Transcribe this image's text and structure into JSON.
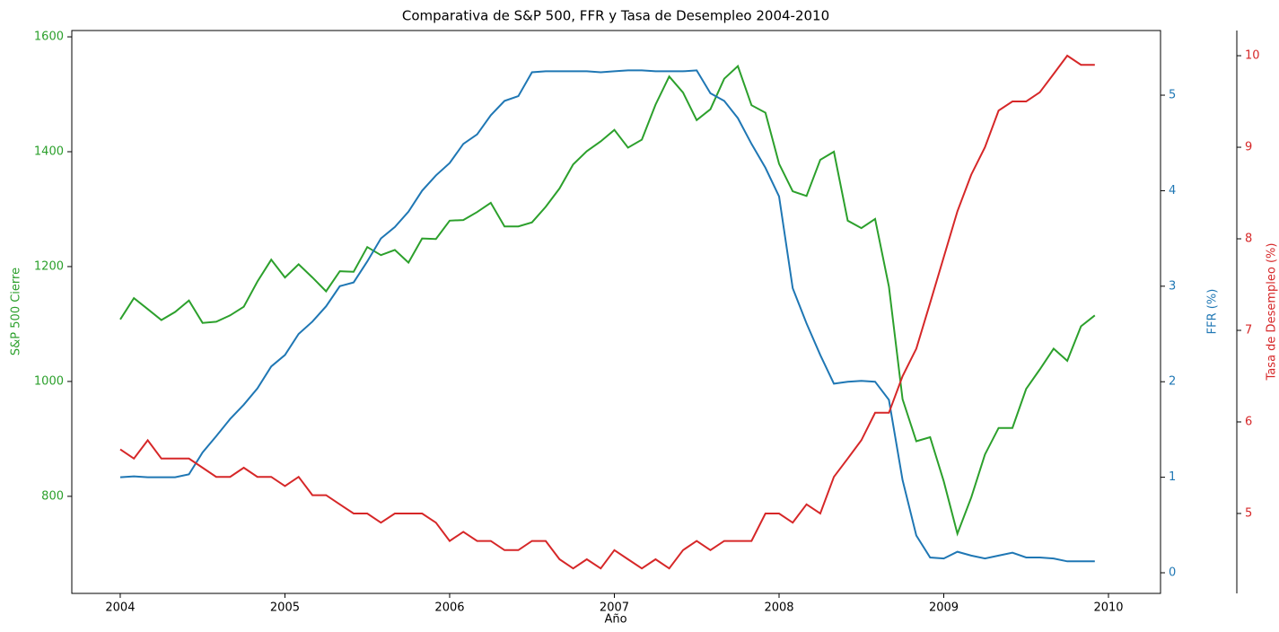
{
  "chart_data": {
    "type": "line",
    "title": "Comparativa de S&P 500, FFR y Tasa de Desempleo 2004-2010",
    "xlabel": "Año",
    "ylabel": "S&P 500 Cierre",
    "y2label": "FFR (%)",
    "y3label": "Tasa de Desempleo (%)",
    "x": [
      2004,
      2004.083,
      2004.167,
      2004.25,
      2004.333,
      2004.417,
      2004.5,
      2004.583,
      2004.667,
      2004.75,
      2004.833,
      2004.917,
      2005,
      2005.083,
      2005.167,
      2005.25,
      2005.333,
      2005.417,
      2005.5,
      2005.583,
      2005.667,
      2005.75,
      2005.833,
      2005.917,
      2006,
      2006.083,
      2006.167,
      2006.25,
      2006.333,
      2006.417,
      2006.5,
      2006.583,
      2006.667,
      2006.75,
      2006.833,
      2006.917,
      2007,
      2007.083,
      2007.167,
      2007.25,
      2007.333,
      2007.417,
      2007.5,
      2007.583,
      2007.667,
      2007.75,
      2007.833,
      2007.917,
      2008,
      2008.083,
      2008.167,
      2008.25,
      2008.333,
      2008.417,
      2008.5,
      2008.583,
      2008.667,
      2008.75,
      2008.833,
      2008.917,
      2009,
      2009.083,
      2009.167,
      2009.25,
      2009.333,
      2009.417,
      2009.5,
      2009.583,
      2009.667,
      2009.75,
      2009.833,
      2009.917
    ],
    "series": [
      {
        "name": "S&P 500 Cierre",
        "color": "#2ca02c",
        "axis": "y",
        "values": [
          1108,
          1145,
          1126,
          1107,
          1121,
          1141,
          1102,
          1104,
          1115,
          1130,
          1174,
          1212,
          1181,
          1204,
          1181,
          1157,
          1192,
          1191,
          1234,
          1220,
          1229,
          1207,
          1249,
          1248,
          1280,
          1281,
          1295,
          1311,
          1270,
          1270,
          1277,
          1304,
          1336,
          1378,
          1401,
          1418,
          1438,
          1407,
          1421,
          1482,
          1531,
          1503,
          1455,
          1474,
          1527,
          1549,
          1481,
          1468,
          1379,
          1331,
          1323,
          1386,
          1400,
          1280,
          1267,
          1283,
          1165,
          969,
          896,
          903,
          826,
          735,
          798,
          873,
          919,
          919,
          987,
          1021,
          1057,
          1036,
          1096,
          1115
        ]
      },
      {
        "name": "FFR (%)",
        "color": "#1f77b4",
        "axis": "y2",
        "values": [
          1.0,
          1.01,
          1.0,
          1.0,
          1.0,
          1.03,
          1.26,
          1.43,
          1.61,
          1.76,
          1.93,
          2.16,
          2.28,
          2.5,
          2.63,
          2.79,
          3.0,
          3.04,
          3.26,
          3.5,
          3.62,
          3.78,
          4.0,
          4.16,
          4.29,
          4.49,
          4.59,
          4.79,
          4.94,
          4.99,
          5.24,
          5.25,
          5.25,
          5.25,
          5.25,
          5.24,
          5.25,
          5.26,
          5.26,
          5.25,
          5.25,
          5.25,
          5.26,
          5.02,
          4.94,
          4.76,
          4.49,
          4.24,
          3.94,
          2.98,
          2.61,
          2.28,
          1.98,
          2.0,
          2.01,
          2.0,
          1.81,
          0.97,
          0.39,
          0.16,
          0.15,
          0.22,
          0.18,
          0.15,
          0.18,
          0.21,
          0.16,
          0.16,
          0.15,
          0.12,
          0.12,
          0.12
        ]
      },
      {
        "name": "Tasa de Desempleo (%)",
        "color": "#d62728",
        "axis": "y3",
        "values": [
          5.7,
          5.6,
          5.8,
          5.6,
          5.6,
          5.6,
          5.5,
          5.4,
          5.4,
          5.5,
          5.4,
          5.4,
          5.3,
          5.4,
          5.2,
          5.2,
          5.1,
          5.0,
          5.0,
          4.9,
          5.0,
          5.0,
          5.0,
          4.9,
          4.7,
          4.8,
          4.7,
          4.7,
          4.6,
          4.6,
          4.7,
          4.7,
          4.5,
          4.4,
          4.5,
          4.4,
          4.6,
          4.5,
          4.4,
          4.5,
          4.4,
          4.6,
          4.7,
          4.6,
          4.7,
          4.7,
          4.7,
          5.0,
          5.0,
          4.9,
          5.1,
          5.0,
          5.4,
          5.6,
          5.8,
          6.1,
          6.1,
          6.5,
          6.8,
          7.3,
          7.8,
          8.3,
          8.7,
          9.0,
          9.4,
          9.5,
          9.5,
          9.6,
          9.8,
          10.0,
          9.9,
          9.9
        ]
      }
    ],
    "xlim": [
      2003.706,
      2010.316
    ],
    "xticks": [
      2004,
      2005,
      2006,
      2007,
      2008,
      2009,
      2010
    ],
    "ylim": [
      631,
      1611
    ],
    "yticks": [
      800,
      1000,
      1200,
      1400,
      1600
    ],
    "y2lim": [
      -0.216,
      5.677
    ],
    "y2ticks": [
      0,
      1,
      2,
      3,
      4,
      5
    ],
    "y3lim": [
      4.127,
      10.275
    ],
    "y3ticks": [
      5,
      6,
      7,
      8,
      9,
      10
    ]
  }
}
